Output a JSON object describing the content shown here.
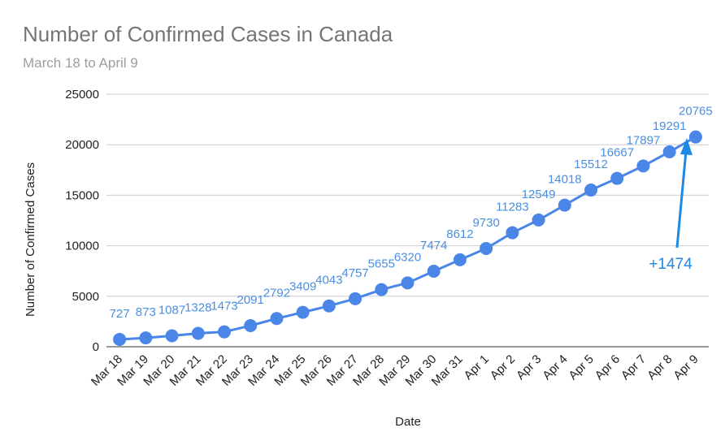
{
  "chart_data": {
    "type": "line",
    "title": "Number of Confirmed Cases in Canada",
    "subtitle": "March 18 to April 9",
    "x_label": "Date",
    "y_label": "Number of Confirmed Cases",
    "categories": [
      "Mar 18",
      "Mar 19",
      "Mar 20",
      "Mar 21",
      "Mar 22",
      "Mar 23",
      "Mar 24",
      "Mar 25",
      "Mar 26",
      "Mar 27",
      "Mar 28",
      "Mar 29",
      "Mar 30",
      "Mar 31",
      "Apr 1",
      "Apr 2",
      "Apr 3",
      "Apr 4",
      "Apr 5",
      "Apr 6",
      "Apr 7",
      "Apr 8",
      "Apr 9"
    ],
    "values": [
      727,
      873,
      1087,
      1328,
      1473,
      2091,
      2792,
      3409,
      4043,
      4757,
      5655,
      6320,
      7474,
      8612,
      9730,
      11283,
      12549,
      14018,
      15512,
      16667,
      17897,
      19291,
      20765
    ],
    "color": "#4a86e8",
    "label_color": "#4a8fe0",
    "ylim": [
      0,
      25000
    ],
    "yticks": [
      0,
      5000,
      10000,
      15000,
      20000,
      25000
    ],
    "grid": true,
    "annotation": "+1474"
  }
}
